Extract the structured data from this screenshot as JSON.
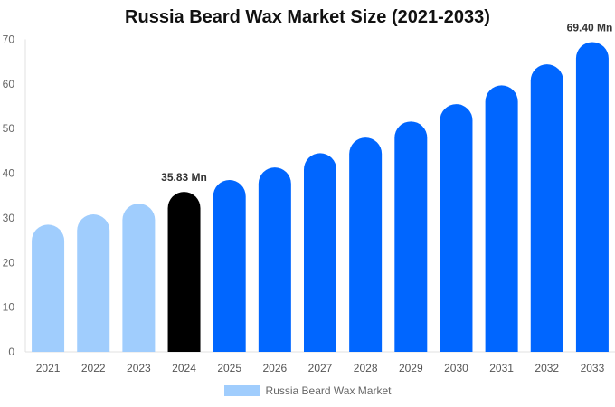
{
  "chart_data": {
    "type": "bar",
    "title": "Russia Beard Wax Market Size (2021-2033)",
    "xlabel": "",
    "ylabel": "",
    "ylim": [
      0,
      70
    ],
    "yticks": [
      0,
      10,
      20,
      30,
      40,
      50,
      60,
      70
    ],
    "grid": false,
    "legend_placement": "bottom",
    "categories": [
      "2021",
      "2022",
      "2023",
      "2024",
      "2025",
      "2026",
      "2027",
      "2028",
      "2029",
      "2030",
      "2031",
      "2032",
      "2033"
    ],
    "series": [
      {
        "name": "Russia Beard Wax Market",
        "values": [
          28.5,
          30.8,
          33.2,
          35.83,
          38.5,
          41.3,
          44.5,
          48.0,
          51.6,
          55.5,
          59.7,
          64.4,
          69.4
        ]
      }
    ],
    "bar_colors": [
      "#a0cdfd",
      "#a0cdfd",
      "#a0cdfd",
      "#000000",
      "#0066ff",
      "#0066ff",
      "#0066ff",
      "#0066ff",
      "#0066ff",
      "#0066ff",
      "#0066ff",
      "#0066ff",
      "#0066ff"
    ],
    "legend_color": "#a0cdfd",
    "annotations": [
      {
        "category": "2024",
        "text": "35.83 Mn"
      },
      {
        "category": "2033",
        "text": "69.40 Mn"
      }
    ]
  }
}
